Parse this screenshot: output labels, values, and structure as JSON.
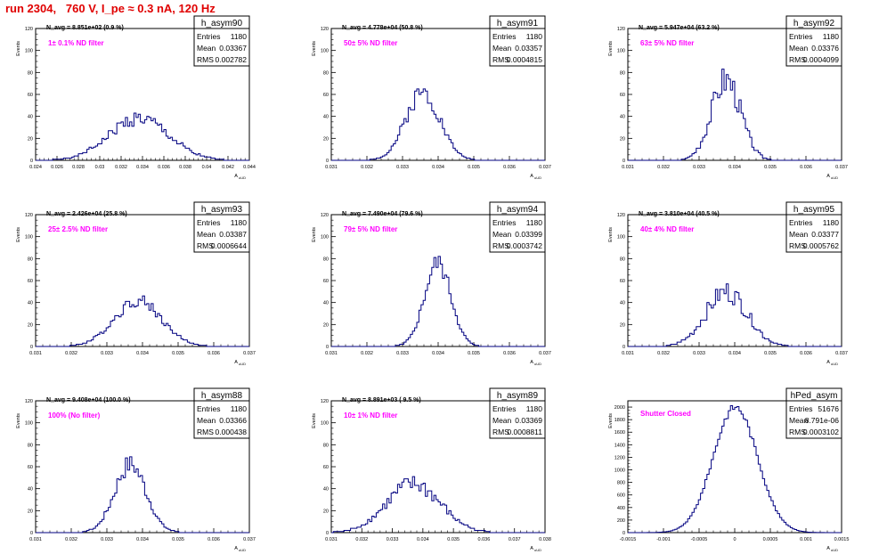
{
  "page_title": "run 2304,   760 V, I_pe ≈ 0.3 nA, 120 Hz",
  "axis_ylabel": "Events",
  "axis_xlabel": "A",
  "axis_xlabel_sub": "uUD",
  "stats_labels": {
    "entries": "Entries",
    "mean": "Mean",
    "rms": "RMS"
  },
  "colors": {
    "histogram": "#000080",
    "annotation": "#ff00ff",
    "title": "#e00000",
    "frame": "#000000"
  },
  "chart_data": [
    {
      "type": "bar",
      "name": "h_asym90",
      "navg": "N_avg = 8.851e+02 (0.9 %)",
      "filter": "1± 0.1% ND filter",
      "entries": "1180",
      "mean": "0.03367",
      "rms": "0.002782",
      "xlim": [
        0.024,
        0.044
      ],
      "ylim": [
        0,
        120
      ],
      "xticks": [
        0.024,
        0.026,
        0.028,
        0.03,
        0.032,
        0.034,
        0.036,
        0.038,
        0.04,
        0.042,
        0.044
      ],
      "xtick_labels": [
        "0.024",
        "0.026",
        "0.028",
        "0.03",
        "0.032",
        "0.034",
        "0.036",
        "0.038",
        "0.04",
        "0.042",
        "0.044"
      ],
      "yticks": [
        0,
        20,
        40,
        60,
        80,
        100,
        120
      ],
      "center": 0.03367,
      "sigma": 0.00278,
      "peak": 38,
      "jitter": 0.18
    },
    {
      "type": "bar",
      "name": "h_asym91",
      "navg": "N_avg = 4.778e+04 (50.8 %)",
      "filter": "50± 5% ND filter",
      "entries": "1180",
      "mean": "0.03357",
      "rms": "0.0004815",
      "xlim": [
        0.031,
        0.037
      ],
      "ylim": [
        0,
        120
      ],
      "xticks": [
        0.031,
        0.032,
        0.033,
        0.034,
        0.035,
        0.036,
        0.037
      ],
      "xtick_labels": [
        "0.031",
        "0.032",
        "0.033",
        "0.034",
        "0.035",
        "0.036",
        "0.037"
      ],
      "yticks": [
        0,
        20,
        40,
        60,
        80,
        100,
        120
      ],
      "center": 0.03357,
      "sigma": 0.00048,
      "peak": 62,
      "jitter": 0.15
    },
    {
      "type": "bar",
      "name": "h_asym92",
      "navg": "N_avg = 5.947e+04 (63.2 %)",
      "filter": "63± 5% ND filter",
      "entries": "1180",
      "mean": "0.03376",
      "rms": "0.0004099",
      "xlim": [
        0.031,
        0.037
      ],
      "ylim": [
        0,
        120
      ],
      "xticks": [
        0.031,
        0.032,
        0.033,
        0.034,
        0.035,
        0.036,
        0.037
      ],
      "xtick_labels": [
        "0.031",
        "0.032",
        "0.033",
        "0.034",
        "0.035",
        "0.036",
        "0.037"
      ],
      "yticks": [
        0,
        20,
        40,
        60,
        80,
        100,
        120
      ],
      "center": 0.03376,
      "sigma": 0.00041,
      "peak": 74,
      "jitter": 0.2
    },
    {
      "type": "bar",
      "name": "h_asym93",
      "navg": "N_avg = 2.426e+04 (25.8 %)",
      "filter": "25± 2.5% ND filter",
      "entries": "1180",
      "mean": "0.03387",
      "rms": "0.0006644",
      "xlim": [
        0.031,
        0.037
      ],
      "ylim": [
        0,
        120
      ],
      "xticks": [
        0.031,
        0.032,
        0.033,
        0.034,
        0.035,
        0.036,
        0.037
      ],
      "xtick_labels": [
        "0.031",
        "0.032",
        "0.033",
        "0.034",
        "0.035",
        "0.036",
        "0.037"
      ],
      "yticks": [
        0,
        20,
        40,
        60,
        80,
        100,
        120
      ],
      "center": 0.03387,
      "sigma": 0.00066,
      "peak": 42,
      "jitter": 0.15
    },
    {
      "type": "bar",
      "name": "h_asym94",
      "navg": "N_avg = 7.490e+04 (79.6 %)",
      "filter": "79± 5% ND filter",
      "entries": "1180",
      "mean": "0.03399",
      "rms": "0.0003742",
      "xlim": [
        0.031,
        0.037
      ],
      "ylim": [
        0,
        120
      ],
      "xticks": [
        0.031,
        0.032,
        0.033,
        0.034,
        0.035,
        0.036,
        0.037
      ],
      "xtick_labels": [
        "0.031",
        "0.032",
        "0.033",
        "0.034",
        "0.035",
        "0.036",
        "0.037"
      ],
      "yticks": [
        0,
        20,
        40,
        60,
        80,
        100,
        120
      ],
      "center": 0.03399,
      "sigma": 0.00037,
      "peak": 76,
      "jitter": 0.12
    },
    {
      "type": "bar",
      "name": "h_asym95",
      "navg": "N_avg = 3.810e+04 (40.5 %)",
      "filter": "40± 4% ND filter",
      "entries": "1180",
      "mean": "0.03377",
      "rms": "0.0005762",
      "xlim": [
        0.031,
        0.037
      ],
      "ylim": [
        0,
        120
      ],
      "xticks": [
        0.031,
        0.032,
        0.033,
        0.034,
        0.035,
        0.036,
        0.037
      ],
      "xtick_labels": [
        "0.031",
        "0.032",
        "0.033",
        "0.034",
        "0.035",
        "0.036",
        "0.037"
      ],
      "yticks": [
        0,
        20,
        40,
        60,
        80,
        100,
        120
      ],
      "center": 0.03377,
      "sigma": 0.00058,
      "peak": 50,
      "jitter": 0.2
    },
    {
      "type": "bar",
      "name": "h_asym88",
      "navg": "N_avg = 9.408e+04 (100.0 %)",
      "filter": "100% (No filter)",
      "entries": "1180",
      "mean": "0.03366",
      "rms": "0.000438",
      "xlim": [
        0.031,
        0.037
      ],
      "ylim": [
        0,
        120
      ],
      "xticks": [
        0.031,
        0.032,
        0.033,
        0.034,
        0.035,
        0.036,
        0.037
      ],
      "xtick_labels": [
        "0.031",
        "0.032",
        "0.033",
        "0.034",
        "0.035",
        "0.036",
        "0.037"
      ],
      "yticks": [
        0,
        20,
        40,
        60,
        80,
        100,
        120
      ],
      "center": 0.03366,
      "sigma": 0.00044,
      "peak": 62,
      "jitter": 0.15
    },
    {
      "type": "bar",
      "name": "h_asym89",
      "navg": "N_avg = 8.891e+03 ( 9.5 %)",
      "filter": "10± 1% ND filter",
      "entries": "1180",
      "mean": "0.03369",
      "rms": "0.0008811",
      "xlim": [
        0.031,
        0.038
      ],
      "ylim": [
        0,
        120
      ],
      "xticks": [
        0.031,
        0.032,
        0.033,
        0.034,
        0.035,
        0.036,
        0.037,
        0.038
      ],
      "xtick_labels": [
        "0.031",
        "0.032",
        "0.033",
        "0.034",
        "0.035",
        "0.036",
        "0.037",
        "0.038"
      ],
      "yticks": [
        0,
        20,
        40,
        60,
        80,
        100,
        120
      ],
      "center": 0.03369,
      "sigma": 0.00088,
      "peak": 44,
      "jitter": 0.2
    },
    {
      "type": "bar",
      "name": "hPed_asym",
      "navg": "",
      "filter": "Shutter Closed",
      "entries": "51676",
      "mean": "8.791e-06",
      "rms": "0.0003102",
      "xlim": [
        -0.0015,
        0.0015
      ],
      "ylim": [
        0,
        2100
      ],
      "xticks": [
        -0.0015,
        -0.001,
        -0.0005,
        0,
        0.0005,
        0.001,
        0.0015
      ],
      "xtick_labels": [
        "-0.0015",
        "-0.001",
        "-0.0005",
        "0",
        "0.0005",
        "0.001",
        "0.0015"
      ],
      "yticks": [
        0,
        200,
        400,
        600,
        800,
        1000,
        1200,
        1400,
        1600,
        1800,
        2000
      ],
      "center": 8.8e-06,
      "sigma": 0.00031,
      "peak": 2000,
      "jitter": 0.03
    }
  ]
}
